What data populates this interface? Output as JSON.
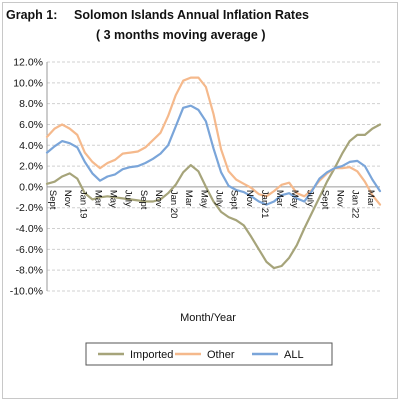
{
  "chart_data": {
    "type": "line",
    "title_label": "Graph 1:",
    "title": "Solomon Islands Annual Inflation Rates",
    "subtitle": "( 3 months moving average )",
    "xlabel": "Month/Year",
    "ylabel": "",
    "ylim": [
      -10,
      12
    ],
    "ytick_labels": [
      "12.0%",
      "10.0%",
      "8.0%",
      "6.0%",
      "4.0%",
      "2.0%",
      "0.0%",
      "-2.0%",
      "-4.0%",
      "-6.0%",
      "-8.0%",
      "-10.0%"
    ],
    "ytick_values": [
      12,
      10,
      8,
      6,
      4,
      2,
      0,
      -2,
      -4,
      -6,
      -8,
      -10
    ],
    "x_tick_labels": [
      "Sept",
      "Nov",
      "Jan 19",
      "Mar",
      "May",
      "July",
      "Sept",
      "Nov",
      "Jan 20",
      "Mar",
      "May",
      "July",
      "Sept",
      "Nov",
      "Jan 21",
      "Mar",
      "May",
      "July",
      "Sept",
      "Nov",
      "Jan 22",
      "Mar"
    ],
    "x_tick_index": [
      0,
      2,
      4,
      6,
      8,
      10,
      12,
      14,
      16,
      18,
      20,
      22,
      24,
      26,
      28,
      30,
      32,
      34,
      36,
      38,
      40,
      42
    ],
    "grid": true,
    "legend_position": "bottom",
    "series": [
      {
        "name": "Imported",
        "color": "#a6a47a",
        "values": [
          0.3,
          0.5,
          1.0,
          1.3,
          0.8,
          -0.6,
          -1.2,
          -1.0,
          -0.9,
          -1.0,
          -1.1,
          -1.2,
          -1.3,
          -1.4,
          -1.4,
          -1.2,
          -0.6,
          0.2,
          1.4,
          2.1,
          1.5,
          0.0,
          -1.4,
          -2.4,
          -2.9,
          -3.2,
          -3.7,
          -4.8,
          -6.0,
          -7.2,
          -7.8,
          -7.6,
          -6.8,
          -5.6,
          -4.0,
          -2.5,
          -1.0,
          0.5,
          1.8,
          3.2,
          4.4,
          5.0,
          5.0,
          5.6,
          6.0
        ]
      },
      {
        "name": "Other",
        "color": "#f5b98c",
        "values": [
          4.8,
          5.6,
          6.0,
          5.6,
          5.0,
          3.3,
          2.4,
          1.8,
          2.3,
          2.6,
          3.2,
          3.3,
          3.4,
          3.8,
          4.5,
          5.2,
          6.8,
          8.8,
          10.2,
          10.5,
          10.5,
          9.6,
          7.0,
          3.6,
          1.5,
          0.7,
          0.3,
          -0.1,
          -0.7,
          -0.9,
          -0.4,
          0.2,
          0.4,
          -0.6,
          -0.9,
          -0.3,
          0.6,
          1.3,
          1.8,
          1.8,
          1.9,
          1.5,
          0.5,
          -0.8,
          -1.7
        ]
      },
      {
        "name": "ALL",
        "color": "#7aa5d9",
        "values": [
          3.3,
          3.9,
          4.4,
          4.2,
          3.8,
          2.4,
          1.3,
          0.6,
          1.0,
          1.2,
          1.7,
          1.9,
          2.0,
          2.3,
          2.7,
          3.2,
          4.0,
          5.8,
          7.6,
          7.8,
          7.4,
          6.3,
          3.7,
          1.4,
          0.1,
          -0.3,
          -0.5,
          -0.9,
          -1.4,
          -1.7,
          -1.4,
          -0.8,
          -0.6,
          -1.1,
          -1.4,
          -0.4,
          0.8,
          1.4,
          1.8,
          2.0,
          2.4,
          2.5,
          2.0,
          0.7,
          -0.4
        ]
      }
    ]
  }
}
